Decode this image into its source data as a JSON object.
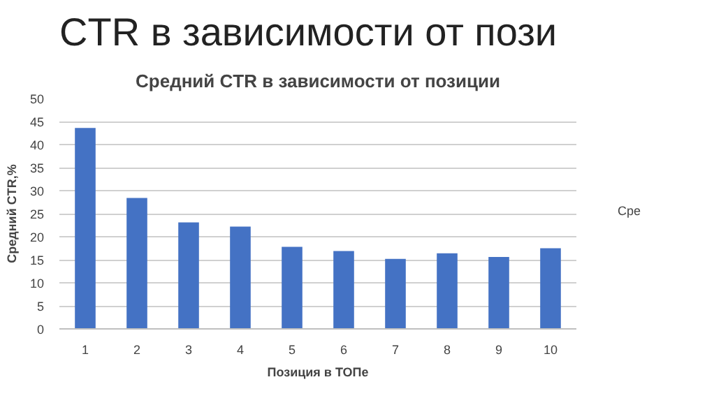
{
  "chart_data": {
    "type": "bar",
    "title": "Средний CTR в зависимости от позиции",
    "annotations": [
      "CTR в зависимости от пози"
    ],
    "xlabel": "Позиция в ТОПе",
    "ylabel": "Средний CTR,%",
    "categories": [
      "1",
      "2",
      "3",
      "4",
      "5",
      "6",
      "7",
      "8",
      "9",
      "10"
    ],
    "series": [
      {
        "name": "Сре",
        "color": "#4472c4",
        "values": [
          43.6,
          28.4,
          23.1,
          22.2,
          17.8,
          16.9,
          15.2,
          16.4,
          15.6,
          17.5
        ]
      }
    ],
    "ylim": [
      0,
      50
    ],
    "yticks": [
      0,
      5,
      10,
      15,
      20,
      25,
      30,
      35,
      40,
      45,
      50
    ],
    "grid": "y",
    "legend": "right"
  }
}
